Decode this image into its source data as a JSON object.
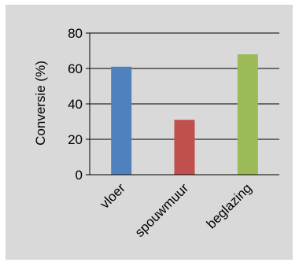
{
  "chart_data": {
    "type": "bar",
    "ylabel": "Conversie (%)",
    "xlabel": "",
    "ylim": [
      0,
      80
    ],
    "yticks": [
      0,
      20,
      40,
      60,
      80
    ],
    "grid": true,
    "categories": [
      "vloer",
      "spouwmuur",
      "beglazing"
    ],
    "values": [
      61,
      31,
      68
    ],
    "colors": [
      "#4f81bd",
      "#c0504d",
      "#9bbb59"
    ]
  }
}
